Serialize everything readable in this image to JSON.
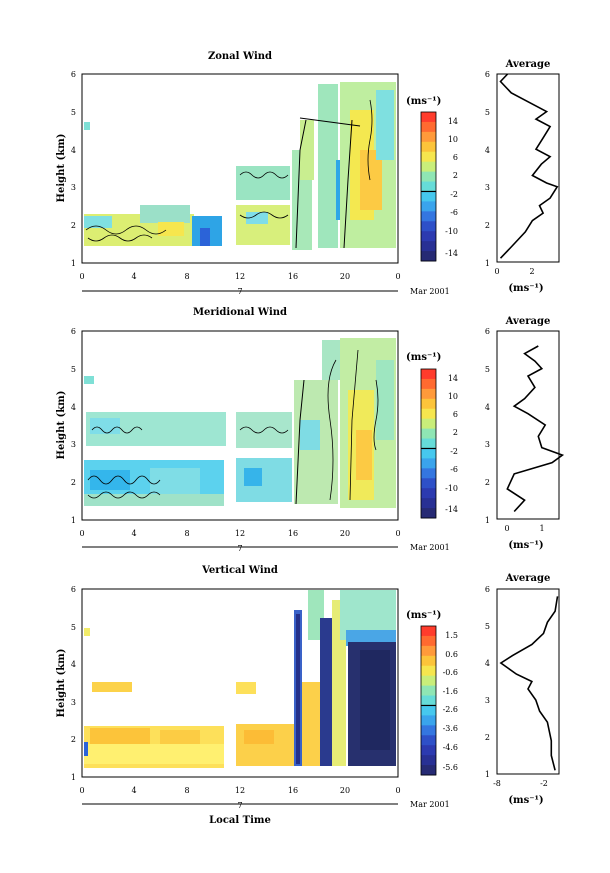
{
  "chart_data": [
    {
      "type": "heatmap",
      "title": "Zonal Wind",
      "ylabel": "Height (km)",
      "ylim": [
        1,
        6
      ],
      "x_ticks": [
        "0",
        "4",
        "8",
        "12",
        "16",
        "20",
        "0"
      ],
      "date_bar": {
        "label": "7",
        "tag": "Mar 2001"
      },
      "colorbar": {
        "unit": "(ms⁻¹)",
        "ticks": [
          "14",
          "10",
          "6",
          "2",
          "-2",
          "-6",
          "-10",
          "-14"
        ],
        "range": [
          -16,
          16
        ]
      },
      "profile": {
        "title": "Average",
        "xlabel": "(ms⁻¹)",
        "x_ticks": [
          "0",
          "2"
        ],
        "xlim": [
          0,
          3.5
        ],
        "ylim": [
          1,
          6
        ],
        "points": [
          [
            0.2,
            1.1
          ],
          [
            0.8,
            1.4
          ],
          [
            1.6,
            1.8
          ],
          [
            2.0,
            2.1
          ],
          [
            2.6,
            2.3
          ],
          [
            2.4,
            2.5
          ],
          [
            3.0,
            2.7
          ],
          [
            3.4,
            3.0
          ],
          [
            2.8,
            3.1
          ],
          [
            2.0,
            3.3
          ],
          [
            2.5,
            3.6
          ],
          [
            3.0,
            3.8
          ],
          [
            2.2,
            4.0
          ],
          [
            2.6,
            4.3
          ],
          [
            3.0,
            4.6
          ],
          [
            2.2,
            4.8
          ],
          [
            2.8,
            5.0
          ],
          [
            1.6,
            5.3
          ],
          [
            0.8,
            5.5
          ],
          [
            0.2,
            5.8
          ],
          [
            0.6,
            6.0
          ]
        ]
      }
    },
    {
      "type": "heatmap",
      "title": "Meridional Wind",
      "ylabel": "Height (km)",
      "ylim": [
        1,
        6
      ],
      "x_ticks": [
        "0",
        "4",
        "8",
        "12",
        "16",
        "20",
        "0"
      ],
      "date_bar": {
        "label": "7",
        "tag": "Mar 2001"
      },
      "colorbar": {
        "unit": "(ms⁻¹)",
        "ticks": [
          "14",
          "10",
          "6",
          "2",
          "-2",
          "-6",
          "-10",
          "-14"
        ],
        "range": [
          -16,
          16
        ]
      },
      "profile": {
        "title": "Average",
        "xlabel": "(ms⁻¹)",
        "x_ticks": [
          "0",
          "1"
        ],
        "xlim": [
          -0.3,
          1.5
        ],
        "ylim": [
          1,
          6
        ],
        "points": [
          [
            0.2,
            1.2
          ],
          [
            0.5,
            1.5
          ],
          [
            0.0,
            1.8
          ],
          [
            0.2,
            2.2
          ],
          [
            1.3,
            2.5
          ],
          [
            1.6,
            2.7
          ],
          [
            1.0,
            2.9
          ],
          [
            0.9,
            3.2
          ],
          [
            1.1,
            3.5
          ],
          [
            0.6,
            3.8
          ],
          [
            0.2,
            4.0
          ],
          [
            0.5,
            4.2
          ],
          [
            0.8,
            4.5
          ],
          [
            0.6,
            4.8
          ],
          [
            1.0,
            5.0
          ],
          [
            0.8,
            5.2
          ],
          [
            0.5,
            5.4
          ],
          [
            0.9,
            5.6
          ]
        ]
      }
    },
    {
      "type": "heatmap",
      "title": "Vertical Wind",
      "ylabel": "Height (km)",
      "ylim": [
        1,
        6
      ],
      "x_ticks": [
        "0",
        "4",
        "8",
        "12",
        "16",
        "20",
        "0"
      ],
      "date_bar": {
        "label": "7",
        "tag": "Mar 2001"
      },
      "xlabel": "Local Time",
      "colorbar": {
        "unit": "(ms⁻¹)",
        "ticks": [
          "1.5",
          "0.6",
          "-0.6",
          "-1.6",
          "-2.6",
          "-3.6",
          "-4.6",
          "-5.6"
        ],
        "range": [
          -6,
          2
        ]
      },
      "profile": {
        "title": "Average",
        "xlabel": "(ms⁻¹)",
        "x_ticks": [
          "-8",
          "-2"
        ],
        "xlim": [
          -8,
          0
        ],
        "ylim": [
          1,
          6
        ],
        "points": [
          [
            -0.5,
            1.1
          ],
          [
            -1.0,
            1.5
          ],
          [
            -1.0,
            1.9
          ],
          [
            -1.5,
            2.4
          ],
          [
            -2.5,
            2.7
          ],
          [
            -3.0,
            3.0
          ],
          [
            -4.0,
            3.3
          ],
          [
            -3.5,
            3.5
          ],
          [
            -5.5,
            3.7
          ],
          [
            -7.5,
            4.0
          ],
          [
            -6.0,
            4.2
          ],
          [
            -3.5,
            4.5
          ],
          [
            -2.0,
            4.8
          ],
          [
            -1.5,
            5.1
          ],
          [
            -0.5,
            5.4
          ],
          [
            -0.2,
            5.8
          ]
        ]
      }
    }
  ]
}
